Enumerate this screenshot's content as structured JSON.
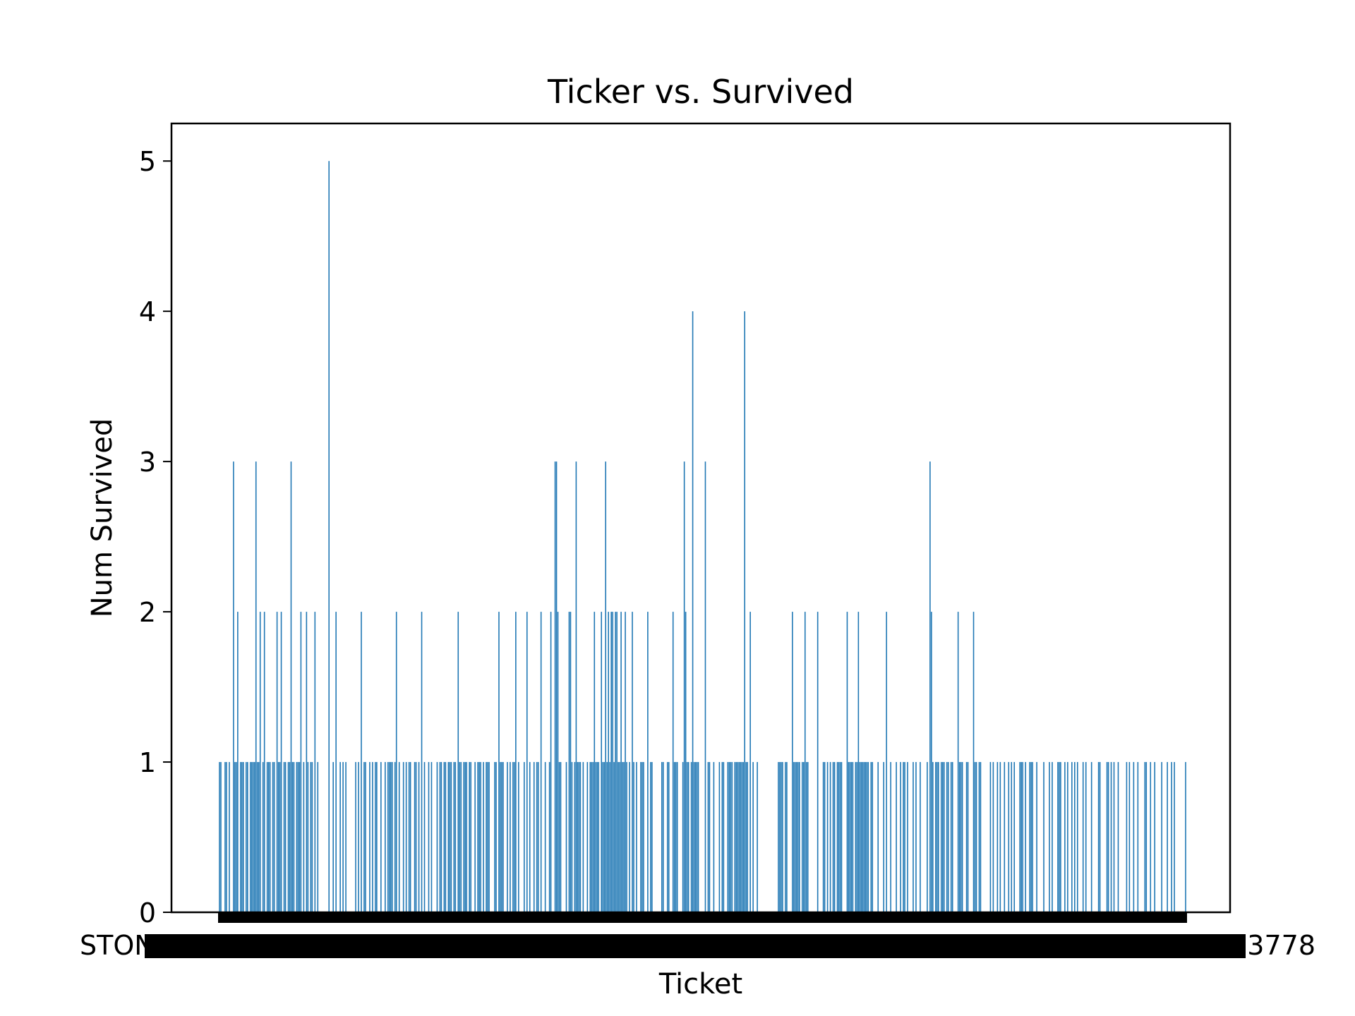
{
  "chart_data": {
    "type": "bar",
    "title": "Ticker vs. Survived",
    "xlabel": "Ticket",
    "ylabel": "Num Survived",
    "ylim": [
      0,
      5.25
    ],
    "yticks": [
      0,
      1,
      2,
      3,
      4,
      5
    ],
    "first_xtick_label": "STON/O2. 3101290",
    "last_xtick_label": "PC 17482 / 113778",
    "bar_color": "#1f77b4",
    "category_count": 681,
    "values": [
      1,
      1,
      0,
      0,
      1,
      1,
      0,
      1,
      0,
      0,
      3,
      1,
      1,
      2,
      0,
      1,
      1,
      1,
      0,
      1,
      1,
      0,
      1,
      1,
      1,
      1,
      3,
      1,
      1,
      2,
      0,
      1,
      2,
      0,
      1,
      1,
      1,
      0,
      1,
      1,
      0,
      2,
      1,
      1,
      2,
      0,
      1,
      1,
      0,
      1,
      1,
      3,
      1,
      1,
      0,
      1,
      1,
      1,
      2,
      0,
      1,
      0,
      2,
      1,
      0,
      1,
      1,
      0,
      2,
      0,
      1,
      0,
      0,
      0,
      0,
      0,
      0,
      0,
      5,
      0,
      0,
      1,
      0,
      2,
      0,
      0,
      1,
      0,
      1,
      0,
      1,
      0,
      0,
      0,
      0,
      0,
      0,
      1,
      0,
      1,
      0,
      2,
      0,
      1,
      1,
      0,
      0,
      1,
      0,
      1,
      0,
      1,
      1,
      0,
      0,
      1,
      0,
      0,
      1,
      0,
      1,
      1,
      1,
      1,
      0,
      1,
      2,
      0,
      1,
      0,
      0,
      1,
      0,
      1,
      0,
      1,
      1,
      0,
      0,
      1,
      1,
      0,
      1,
      0,
      2,
      0,
      1,
      0,
      0,
      1,
      0,
      1,
      0,
      0,
      0,
      1,
      0,
      1,
      1,
      0,
      1,
      1,
      0,
      1,
      1,
      1,
      0,
      1,
      1,
      0,
      2,
      1,
      1,
      0,
      1,
      1,
      1,
      0,
      1,
      1,
      0,
      0,
      1,
      0,
      1,
      1,
      1,
      0,
      1,
      0,
      1,
      1,
      1,
      0,
      0,
      0,
      1,
      1,
      0,
      2,
      1,
      1,
      1,
      0,
      0,
      1,
      0,
      1,
      0,
      1,
      1,
      2,
      0,
      1,
      0,
      0,
      0,
      1,
      0,
      2,
      0,
      1,
      0,
      0,
      1,
      0,
      1,
      1,
      0,
      2,
      0,
      0,
      1,
      0,
      0,
      1,
      2,
      0,
      0,
      3,
      3,
      2,
      1,
      1,
      0,
      0,
      0,
      1,
      0,
      2,
      2,
      1,
      0,
      1,
      3,
      1,
      1,
      1,
      0,
      1,
      0,
      0,
      1,
      0,
      1,
      1,
      1,
      2,
      1,
      1,
      1,
      0,
      2,
      1,
      1,
      3,
      1,
      2,
      1,
      2,
      2,
      1,
      2,
      2,
      1,
      1,
      2,
      1,
      1,
      2,
      1,
      0,
      1,
      0,
      2,
      1,
      0,
      1,
      0,
      0,
      1,
      1,
      1,
      0,
      0,
      2,
      0,
      1,
      1,
      0,
      0,
      0,
      0,
      0,
      0,
      1,
      1,
      0,
      0,
      1,
      1,
      0,
      0,
      2,
      1,
      1,
      1,
      0,
      0,
      0,
      1,
      3,
      2,
      1,
      1,
      0,
      1,
      4,
      1,
      1,
      1,
      1,
      0,
      0,
      0,
      0,
      3,
      0,
      1,
      1,
      0,
      0,
      1,
      0,
      0,
      0,
      1,
      0,
      1,
      1,
      0,
      0,
      1,
      1,
      1,
      1,
      0,
      1,
      1,
      1,
      1,
      1,
      1,
      1,
      4,
      1,
      1,
      0,
      2,
      0,
      1,
      0,
      0,
      1,
      0,
      0,
      0,
      0,
      0,
      0,
      0,
      0,
      0,
      0,
      0,
      0,
      0,
      0,
      1,
      1,
      1,
      1,
      0,
      1,
      1,
      0,
      0,
      0,
      2,
      1,
      1,
      1,
      1,
      1,
      0,
      1,
      1,
      2,
      1,
      1,
      0,
      0,
      0,
      0,
      0,
      0,
      2,
      0,
      0,
      0,
      1,
      1,
      0,
      1,
      0,
      1,
      0,
      1,
      1,
      0,
      1,
      1,
      1,
      1,
      0,
      0,
      0,
      2,
      1,
      1,
      1,
      1,
      0,
      1,
      1,
      2,
      1,
      1,
      1,
      1,
      1,
      1,
      1,
      0,
      1,
      1,
      0,
      0,
      0,
      1,
      0,
      0,
      0,
      1,
      0,
      2,
      0,
      0,
      1,
      0,
      0,
      0,
      1,
      0,
      0,
      1,
      0,
      1,
      1,
      0,
      1,
      0,
      0,
      0,
      1,
      0,
      1,
      0,
      0,
      1,
      0,
      0,
      0,
      0,
      1,
      0,
      3,
      2,
      1,
      0,
      1,
      1,
      1,
      0,
      1,
      1,
      1,
      0,
      1,
      1,
      0,
      1,
      1,
      0,
      0,
      0,
      2,
      1,
      1,
      1,
      0,
      0,
      1,
      1,
      0,
      0,
      0,
      2,
      1,
      1,
      0,
      1,
      1,
      0,
      0,
      0,
      0,
      0,
      0,
      1,
      0,
      1,
      0,
      0,
      1,
      0,
      1,
      0,
      0,
      1,
      0,
      0,
      1,
      0,
      1,
      0,
      1,
      0,
      0,
      0,
      1,
      1,
      1,
      0,
      1,
      0,
      0,
      1,
      1,
      1,
      0,
      0,
      1,
      0,
      0,
      0,
      0,
      1,
      0,
      0,
      0,
      1,
      0,
      1,
      0,
      0,
      0,
      1,
      1,
      1,
      0,
      0,
      1,
      0,
      1,
      0,
      0,
      1,
      0,
      1,
      0,
      1,
      0,
      0,
      0,
      1,
      0,
      1,
      0,
      0,
      0,
      1,
      0,
      0,
      0,
      0,
      1,
      1,
      0,
      0,
      0,
      0,
      1,
      1,
      0,
      1,
      0,
      1,
      0,
      0,
      1,
      0,
      0,
      0,
      0,
      0,
      1,
      0,
      1,
      0,
      0,
      1,
      0,
      0,
      1,
      0,
      0,
      0,
      0,
      1,
      1,
      0,
      0,
      1,
      0,
      0,
      1,
      0,
      0,
      0,
      0,
      1,
      0,
      0,
      0,
      1,
      0,
      0,
      1,
      0,
      1,
      0,
      0,
      0,
      0,
      0,
      0,
      0,
      1
    ]
  }
}
